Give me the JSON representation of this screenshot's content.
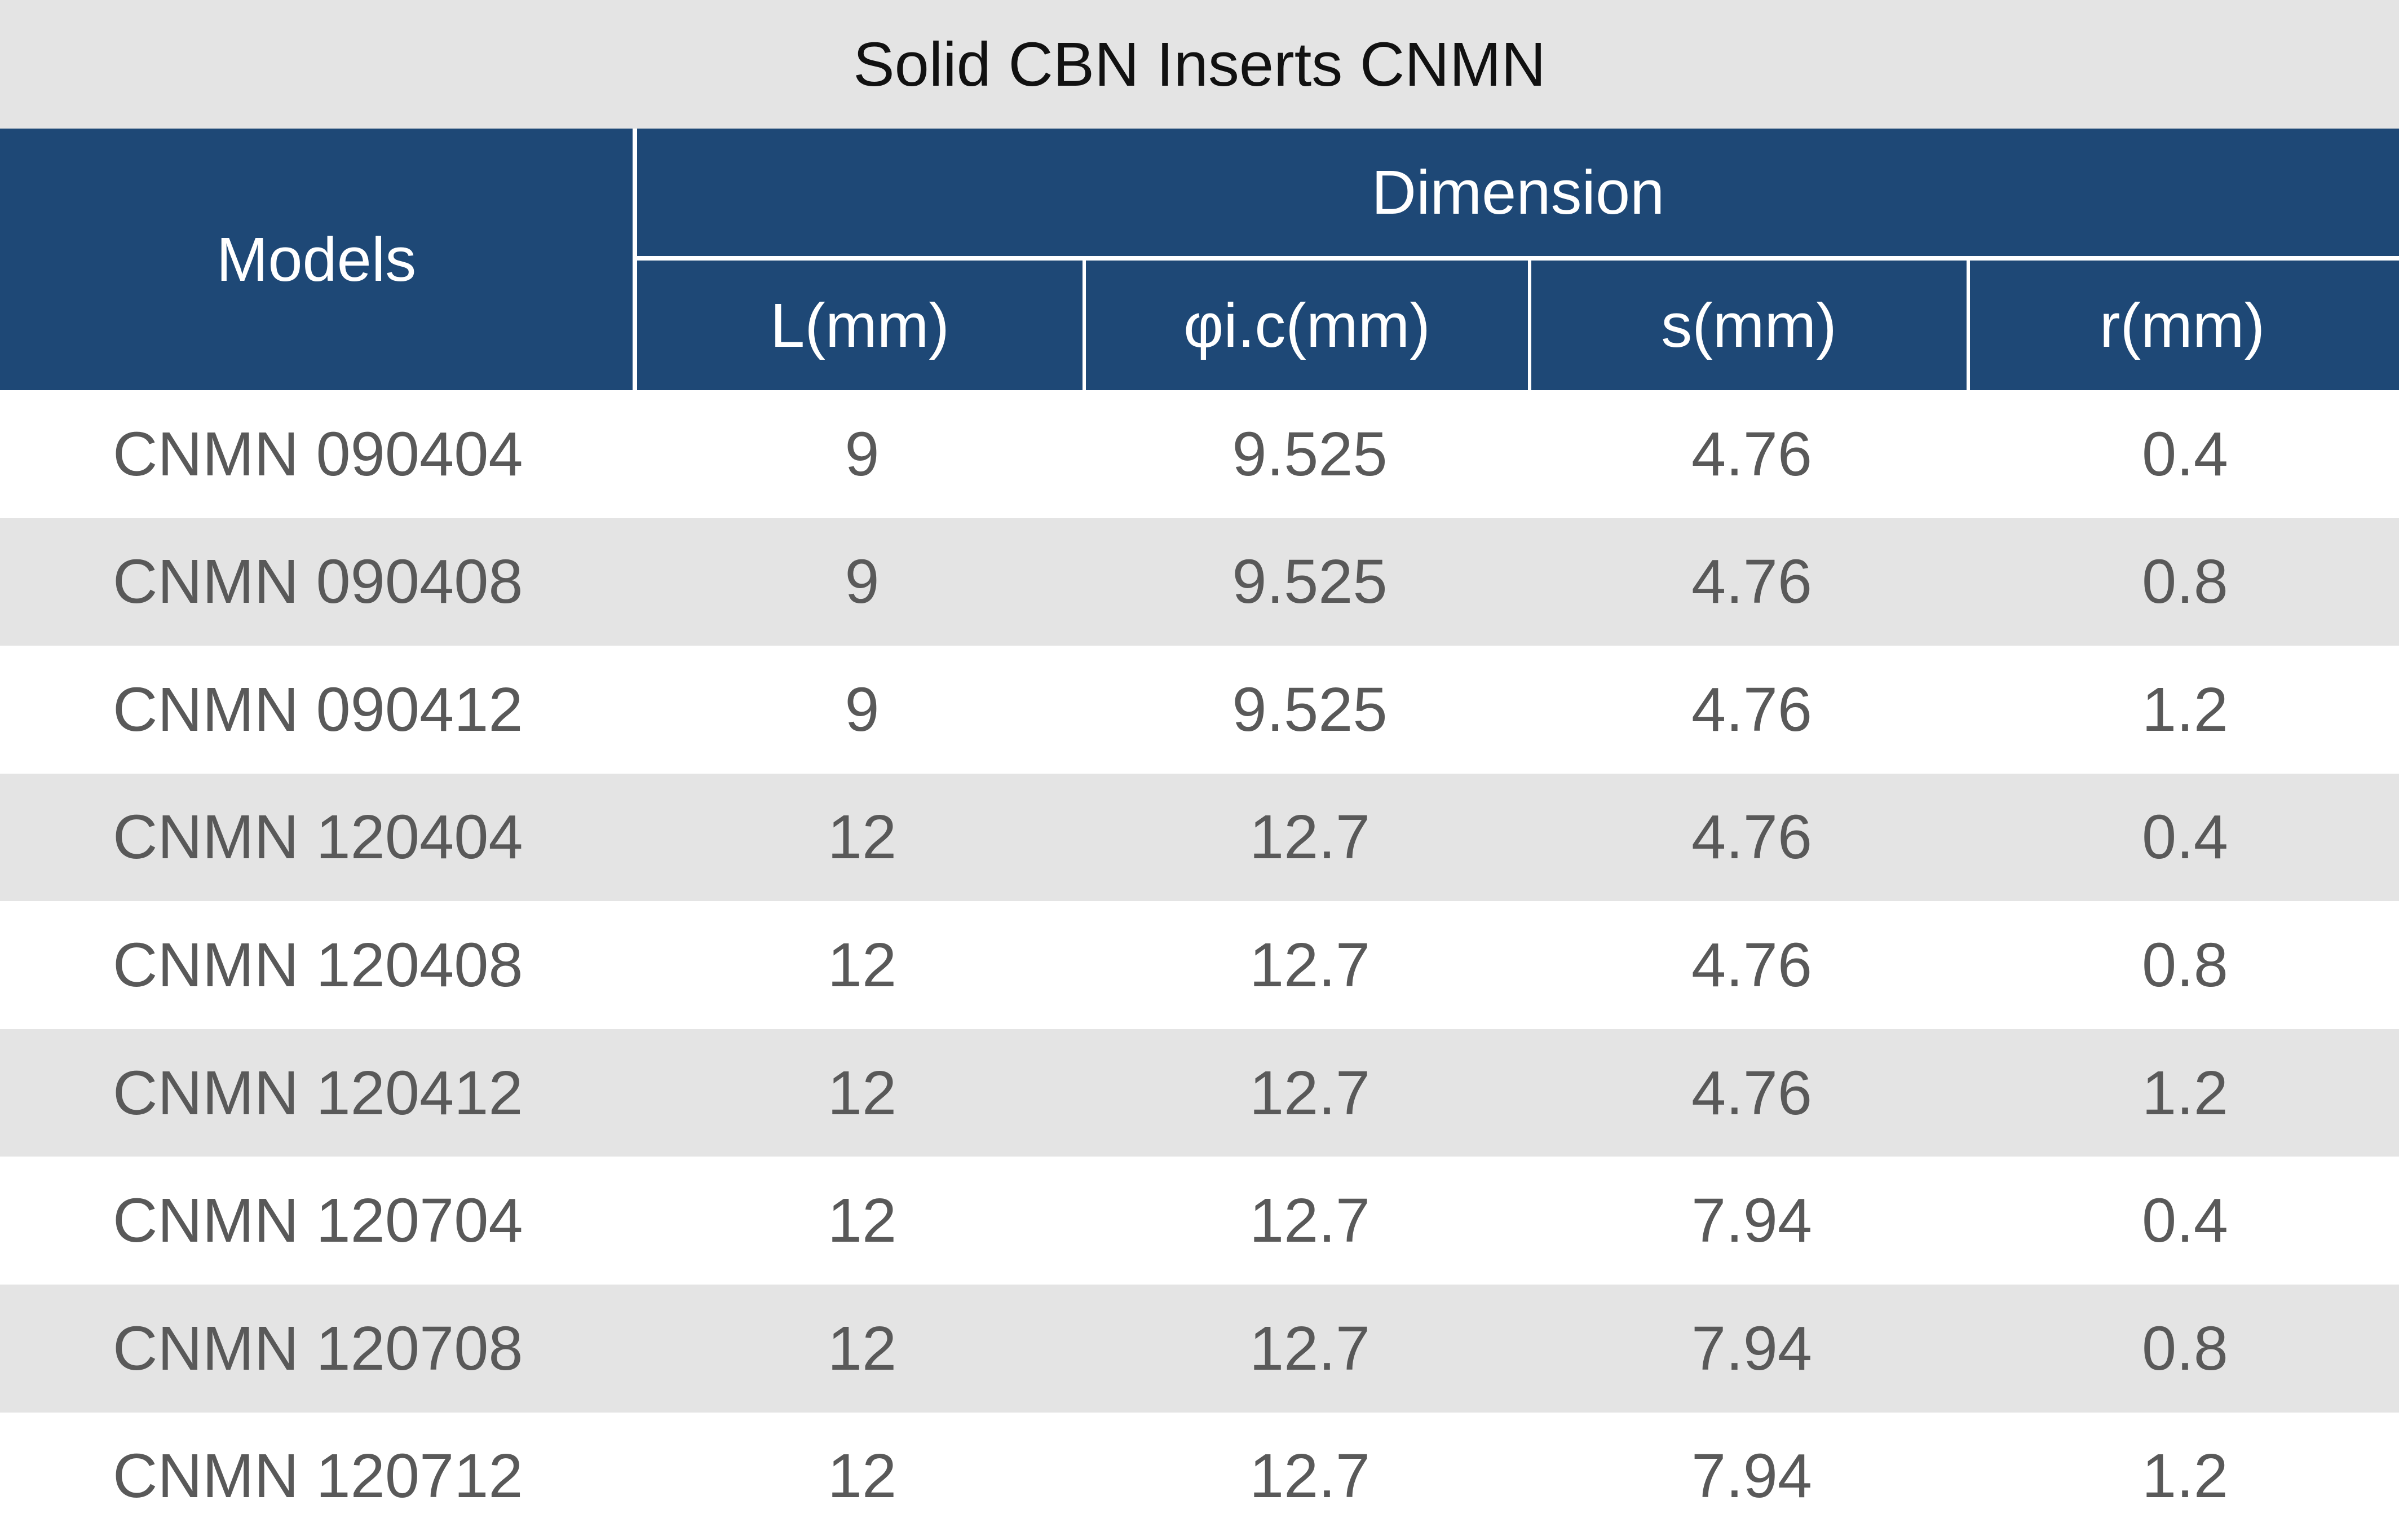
{
  "title": "Solid CBN Inserts CNMN",
  "columns": {
    "models": "Models",
    "dimension_group": "Dimension",
    "sub": [
      "L(mm)",
      "φi.c(mm)",
      "s(mm)",
      "r(mm)"
    ]
  },
  "rows": [
    {
      "model": "CNMN 090404",
      "l": "9",
      "phic": "9.525",
      "s": "4.76",
      "r": "0.4"
    },
    {
      "model": "CNMN 090408",
      "l": "9",
      "phic": "9.525",
      "s": "4.76",
      "r": "0.8"
    },
    {
      "model": "CNMN 090412",
      "l": "9",
      "phic": "9.525",
      "s": "4.76",
      "r": "1.2"
    },
    {
      "model": "CNMN 120404",
      "l": "12",
      "phic": "12.7",
      "s": "4.76",
      "r": "0.4"
    },
    {
      "model": "CNMN 120408",
      "l": "12",
      "phic": "12.7",
      "s": "4.76",
      "r": "0.8"
    },
    {
      "model": "CNMN 120412",
      "l": "12",
      "phic": "12.7",
      "s": "4.76",
      "r": "1.2"
    },
    {
      "model": "CNMN 120704",
      "l": "12",
      "phic": "12.7",
      "s": "7.94",
      "r": "0.4"
    },
    {
      "model": "CNMN 120708",
      "l": "12",
      "phic": "12.7",
      "s": "7.94",
      "r": "0.8"
    },
    {
      "model": "CNMN 120712",
      "l": "12",
      "phic": "12.7",
      "s": "7.94",
      "r": "1.2"
    }
  ],
  "colors": {
    "header_bg": "#1E4876",
    "stripe_bg": "#E4E4E4",
    "title_bg": "#E4E4E4",
    "data_text": "#595959",
    "header_text": "#FFFFFF",
    "title_text": "#111111"
  }
}
